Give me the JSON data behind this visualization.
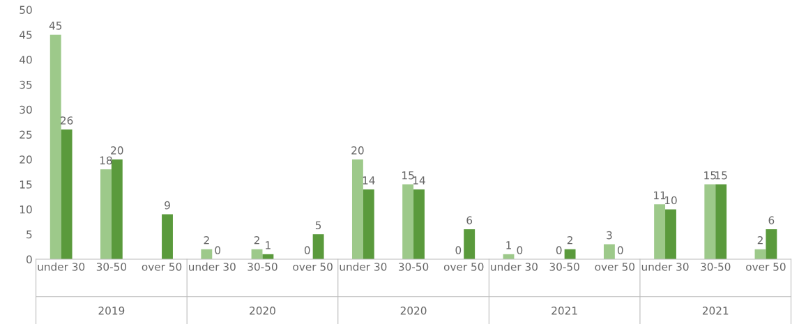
{
  "chart_data": {
    "type": "bar",
    "categories": [
      "under 30",
      "30-50",
      "over 50",
      "under 30",
      "30-50",
      "over 50",
      "under 30",
      "30-50",
      "over 50",
      "under 30",
      "30-50",
      "over 50",
      "under 30",
      "30-50",
      "over 50"
    ],
    "series": [
      {
        "color": "#9dc98a",
        "values": [
          45,
          18,
          null,
          2,
          2,
          0,
          20,
          15,
          0,
          1,
          0,
          3,
          11,
          15,
          2
        ]
      },
      {
        "color": "#5a9a3c",
        "values": [
          26,
          20,
          9,
          0,
          1,
          5,
          14,
          14,
          6,
          0,
          2,
          0,
          10,
          15,
          6
        ]
      }
    ],
    "annotations": [
      "2019",
      "2020",
      "2020",
      "2021",
      "2021"
    ],
    "ylim": [
      0,
      50
    ],
    "yticks": [
      0,
      5,
      10,
      15,
      20,
      25,
      30,
      35,
      40,
      45,
      50
    ],
    "data_labels": true,
    "grid": false,
    "legend": false
  }
}
